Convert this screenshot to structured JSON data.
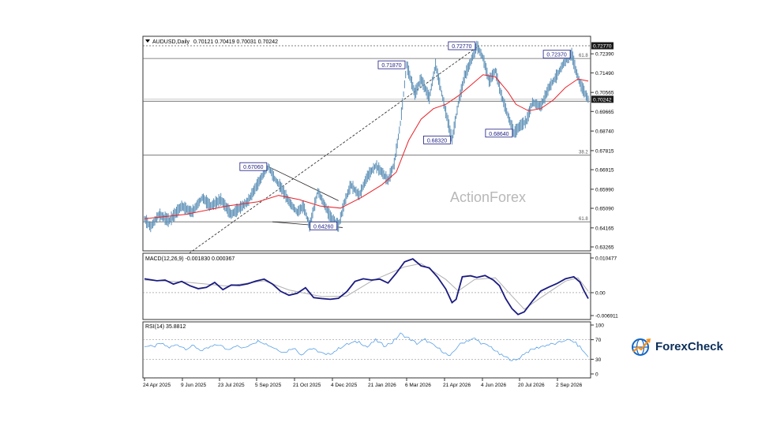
{
  "colors": {
    "price": "#5b8fb6",
    "ma": "#e8232a",
    "macd": "#1a1a80",
    "signal": "#b0b0b0",
    "rsi": "#5aa0e6",
    "label_border": "#1a1a80",
    "label_text": "#1a1a80",
    "level_line": "#444444",
    "watermark": "#b8b8b8",
    "current_bg": "#1a1a1a",
    "logo_blue": "#1565c0",
    "logo_orange": "#f7931e",
    "logo_dark": "#0b2e59"
  },
  "header": {
    "symbol": "AUDUSD,Daily",
    "quote": "0.70121 0.70419 0.70031 0.70242"
  },
  "watermark": "ActionForex",
  "logo": {
    "text": "ForexCheck",
    "icon": "globe-chart-icon"
  },
  "x_axis": {
    "labels": [
      "24 Apr 2025",
      "9 Jun 2025",
      "23 Jul 2025",
      "5 Sep 2025",
      "21 Oct 2025",
      "4 Dec 2025",
      "21 Jan 2026",
      "6 Mar 2026",
      "21 Apr 2026",
      "4 Jun 2026",
      "20 Jul 2026",
      "2 Sep 2026"
    ]
  },
  "chart_data": [
    {
      "type": "line",
      "title": "AUDUSD,Daily 0.70121 0.70419 0.70031 0.70242",
      "ylim": [
        0.63265,
        0.7277
      ],
      "y_ticks": [
        "0.72390",
        "0.71490",
        "0.70565",
        "0.69665",
        "0.68740",
        "0.67815",
        "0.66915",
        "0.65990",
        "0.65090",
        "0.64165",
        "0.63265"
      ],
      "current_price": "0.70242",
      "top_label": "0.72770",
      "series": [],
      "price_path": [
        [
          0,
          0.646
        ],
        [
          3,
          0.642
        ],
        [
          7,
          0.648
        ],
        [
          12,
          0.645
        ],
        [
          18,
          0.652
        ],
        [
          23,
          0.649
        ],
        [
          28,
          0.656
        ],
        [
          32,
          0.652
        ],
        [
          37,
          0.655
        ],
        [
          42,
          0.648
        ],
        [
          46,
          0.651
        ],
        [
          50,
          0.654
        ],
        [
          54,
          0.661
        ],
        [
          57,
          0.666
        ],
        [
          60,
          0.6706
        ],
        [
          63,
          0.665
        ],
        [
          66,
          0.661
        ],
        [
          70,
          0.654
        ],
        [
          74,
          0.649
        ],
        [
          77,
          0.652
        ],
        [
          80,
          0.6426
        ],
        [
          84,
          0.659
        ],
        [
          87,
          0.653
        ],
        [
          90,
          0.647
        ],
        [
          94,
          0.6426
        ],
        [
          97,
          0.654
        ],
        [
          100,
          0.662
        ],
        [
          104,
          0.657
        ],
        [
          108,
          0.666
        ],
        [
          112,
          0.671
        ],
        [
          115,
          0.668
        ],
        [
          118,
          0.664
        ],
        [
          121,
          0.672
        ],
        [
          124,
          0.691
        ],
        [
          127,
          0.7187
        ],
        [
          131,
          0.705
        ],
        [
          134,
          0.712
        ],
        [
          138,
          0.703
        ],
        [
          141,
          0.7187
        ],
        [
          145,
          0.7007
        ],
        [
          149,
          0.6832
        ],
        [
          152,
          0.7
        ],
        [
          155,
          0.713
        ],
        [
          158,
          0.72
        ],
        [
          161,
          0.7277
        ],
        [
          164,
          0.722
        ],
        [
          167,
          0.711
        ],
        [
          170,
          0.716
        ],
        [
          173,
          0.704
        ],
        [
          176,
          0.695
        ],
        [
          179,
          0.6864
        ],
        [
          182,
          0.69
        ],
        [
          185,
          0.692
        ],
        [
          188,
          0.701
        ],
        [
          192,
          0.699
        ],
        [
          196,
          0.708
        ],
        [
          200,
          0.714
        ],
        [
          204,
          0.721
        ],
        [
          207,
          0.7237
        ],
        [
          209,
          0.716
        ],
        [
          211,
          0.71
        ],
        [
          213,
          0.706
        ],
        [
          215,
          0.70242
        ]
      ],
      "ma_path": [
        [
          0,
          0.646
        ],
        [
          20,
          0.648
        ],
        [
          40,
          0.652
        ],
        [
          55,
          0.654
        ],
        [
          65,
          0.657
        ],
        [
          75,
          0.655
        ],
        [
          85,
          0.652
        ],
        [
          95,
          0.651
        ],
        [
          105,
          0.656
        ],
        [
          115,
          0.662
        ],
        [
          122,
          0.668
        ],
        [
          128,
          0.683
        ],
        [
          134,
          0.693
        ],
        [
          140,
          0.698
        ],
        [
          146,
          0.7
        ],
        [
          152,
          0.704
        ],
        [
          158,
          0.709
        ],
        [
          164,
          0.714
        ],
        [
          170,
          0.713
        ],
        [
          176,
          0.706
        ],
        [
          180,
          0.7
        ],
        [
          186,
          0.697
        ],
        [
          192,
          0.698
        ],
        [
          198,
          0.702
        ],
        [
          204,
          0.708
        ],
        [
          210,
          0.712
        ],
        [
          215,
          0.711
        ]
      ],
      "annotations": [
        {
          "text": "0.72770",
          "x": 161,
          "y": 0.7277,
          "pos": "left"
        },
        {
          "text": "0.71870",
          "x": 127,
          "y": 0.7187,
          "pos": "left"
        },
        {
          "text": "0.72370",
          "x": 207,
          "y": 0.7237,
          "pos": "left"
        },
        {
          "text": "0.67060",
          "x": 60,
          "y": 0.6706,
          "pos": "left"
        },
        {
          "text": "0.68320",
          "x": 149,
          "y": 0.6832,
          "pos": "left"
        },
        {
          "text": "0.68640",
          "x": 179,
          "y": 0.6864,
          "pos": "left"
        },
        {
          "text": "0.64260",
          "x": 94,
          "y": 0.6426,
          "pos": "left"
        }
      ],
      "levels": [
        {
          "y": 0.7277,
          "dashed": true,
          "label": ""
        },
        {
          "y": 0.7217,
          "dashed": false,
          "label": "61.8"
        },
        {
          "y": 0.7015,
          "dashed": false,
          "label": ""
        },
        {
          "y": 0.676,
          "dashed": false,
          "label": "38.2"
        },
        {
          "y": 0.6445,
          "dashed": false,
          "label": "61.8"
        }
      ],
      "fib_labels": [
        "61.8",
        "38.2",
        "61.8"
      ],
      "trendlines": [
        {
          "x1": 20,
          "y1": 0.6285,
          "x2": 162,
          "y2": 0.7277,
          "dashed": true
        },
        {
          "x1": 60,
          "y1": 0.6706,
          "x2": 94,
          "y2": 0.6545,
          "dashed": false
        },
        {
          "x1": 62,
          "y1": 0.6445,
          "x2": 96,
          "y2": 0.6418,
          "dashed": false
        }
      ]
    },
    {
      "type": "line",
      "title": "MACD(12,26,9) -0.001830 0.000367",
      "ylim": [
        -0.006911,
        0.010477
      ],
      "y_ticks": [
        "0.010477",
        "0.00",
        "-0.006911"
      ],
      "series": [],
      "macd_path": [
        [
          0,
          0.0042
        ],
        [
          6,
          0.0036
        ],
        [
          10,
          0.0038
        ],
        [
          14,
          0.0026
        ],
        [
          18,
          0.0034
        ],
        [
          22,
          0.0021
        ],
        [
          26,
          0.0012
        ],
        [
          30,
          0.0016
        ],
        [
          34,
          0.0031
        ],
        [
          38,
          0.0009
        ],
        [
          42,
          0.0023
        ],
        [
          46,
          0.0022
        ],
        [
          50,
          0.0027
        ],
        [
          54,
          0.0035
        ],
        [
          58,
          0.0041
        ],
        [
          62,
          0.0026
        ],
        [
          66,
          0.0004
        ],
        [
          70,
          -0.0008
        ],
        [
          74,
          -0.0002
        ],
        [
          78,
          0.0015
        ],
        [
          82,
          -0.0015
        ],
        [
          86,
          -0.0018
        ],
        [
          90,
          -0.002
        ],
        [
          94,
          -0.0017
        ],
        [
          98,
          0.0003
        ],
        [
          102,
          0.0034
        ],
        [
          106,
          0.0042
        ],
        [
          110,
          0.0038
        ],
        [
          114,
          0.0041
        ],
        [
          118,
          0.0029
        ],
        [
          122,
          0.0059
        ],
        [
          126,
          0.0093
        ],
        [
          130,
          0.0102
        ],
        [
          134,
          0.0081
        ],
        [
          138,
          0.0075
        ],
        [
          142,
          0.0047
        ],
        [
          146,
          0.0011
        ],
        [
          149,
          -0.003
        ],
        [
          151,
          -0.002
        ],
        [
          154,
          0.0048
        ],
        [
          158,
          0.0051
        ],
        [
          161,
          0.0046
        ],
        [
          165,
          0.0052
        ],
        [
          169,
          0.0038
        ],
        [
          172,
          0.0021
        ],
        [
          175,
          -0.0018
        ],
        [
          178,
          -0.0048
        ],
        [
          181,
          -0.0066
        ],
        [
          184,
          -0.0058
        ],
        [
          188,
          -0.0025
        ],
        [
          192,
          0.0005
        ],
        [
          196,
          0.0017
        ],
        [
          200,
          0.0028
        ],
        [
          204,
          0.0042
        ],
        [
          208,
          0.0048
        ],
        [
          211,
          0.0032
        ],
        [
          213,
          0.0005
        ],
        [
          215,
          -0.0018
        ]
      ],
      "signal_path": [
        [
          0,
          0.0038
        ],
        [
          20,
          0.0032
        ],
        [
          40,
          0.002
        ],
        [
          58,
          0.0036
        ],
        [
          70,
          0.0008
        ],
        [
          86,
          -0.0012
        ],
        [
          98,
          -0.001
        ],
        [
          110,
          0.0035
        ],
        [
          126,
          0.0078
        ],
        [
          134,
          0.0088
        ],
        [
          146,
          0.004
        ],
        [
          152,
          0.0005
        ],
        [
          160,
          0.004
        ],
        [
          170,
          0.0045
        ],
        [
          178,
          -0.001
        ],
        [
          184,
          -0.005
        ],
        [
          192,
          -0.0015
        ],
        [
          204,
          0.0035
        ],
        [
          210,
          0.0045
        ],
        [
          215,
          0.0004
        ]
      ]
    },
    {
      "type": "line",
      "title": "RSI(14) 35.8812",
      "ylim": [
        0,
        100
      ],
      "y_ticks": [
        "100",
        "70",
        "30",
        "0"
      ],
      "series": [],
      "rsi_path": [
        [
          0,
          58
        ],
        [
          4,
          55
        ],
        [
          8,
          62
        ],
        [
          12,
          54
        ],
        [
          16,
          60
        ],
        [
          20,
          52
        ],
        [
          24,
          57
        ],
        [
          28,
          47
        ],
        [
          32,
          55
        ],
        [
          36,
          60
        ],
        [
          40,
          50
        ],
        [
          44,
          58
        ],
        [
          48,
          52
        ],
        [
          52,
          63
        ],
        [
          56,
          68
        ],
        [
          60,
          59
        ],
        [
          64,
          51
        ],
        [
          68,
          44
        ],
        [
          72,
          54
        ],
        [
          76,
          40
        ],
        [
          80,
          52
        ],
        [
          84,
          47
        ],
        [
          88,
          38
        ],
        [
          92,
          46
        ],
        [
          96,
          57
        ],
        [
          100,
          63
        ],
        [
          104,
          66
        ],
        [
          108,
          55
        ],
        [
          112,
          69
        ],
        [
          116,
          58
        ],
        [
          120,
          64
        ],
        [
          124,
          82
        ],
        [
          128,
          73
        ],
        [
          132,
          62
        ],
        [
          136,
          70
        ],
        [
          140,
          58
        ],
        [
          144,
          48
        ],
        [
          148,
          35
        ],
        [
          152,
          58
        ],
        [
          156,
          68
        ],
        [
          160,
          72
        ],
        [
          164,
          61
        ],
        [
          168,
          55
        ],
        [
          172,
          40
        ],
        [
          176,
          32
        ],
        [
          180,
          27
        ],
        [
          184,
          42
        ],
        [
          188,
          50
        ],
        [
          192,
          56
        ],
        [
          196,
          60
        ],
        [
          200,
          62
        ],
        [
          204,
          70
        ],
        [
          208,
          66
        ],
        [
          211,
          55
        ],
        [
          213,
          44
        ],
        [
          215,
          35.9
        ]
      ]
    }
  ]
}
